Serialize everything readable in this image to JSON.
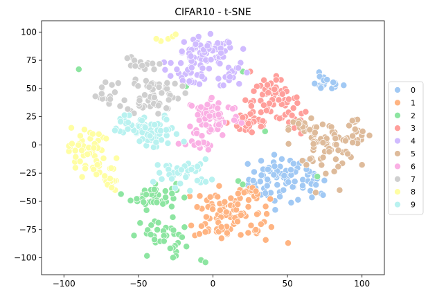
{
  "chart_data": {
    "type": "scatter",
    "title": "CIFAR10 - t-SNE",
    "xlabel": "",
    "ylabel": "",
    "xlim": [
      -115,
      115
    ],
    "ylim": [
      -115,
      110
    ],
    "xticks": [
      -100,
      -50,
      0,
      50,
      100
    ],
    "yticks": [
      -100,
      -75,
      -50,
      -25,
      0,
      25,
      50,
      75,
      100
    ],
    "grid": false,
    "legend_position": "right",
    "series": [
      {
        "name": "0",
        "color": "#a1c9f4",
        "clusters": [
          {
            "center": [
              45,
              -30
            ],
            "spread": [
              14,
              14
            ],
            "count": 70
          },
          {
            "center": [
              75,
              55
            ],
            "spread": [
              8,
              5
            ],
            "count": 18
          },
          {
            "center": [
              68,
              -38
            ],
            "spread": [
              6,
              10
            ],
            "count": 15
          }
        ],
        "points": []
      },
      {
        "name": "1",
        "color": "#ffb482",
        "clusters": [
          {
            "center": [
              5,
              -60
            ],
            "spread": [
              12,
              18
            ],
            "count": 70
          },
          {
            "center": [
              25,
              -45
            ],
            "spread": [
              8,
              10
            ],
            "count": 20
          },
          {
            "center": [
              30,
              -75
            ],
            "spread": [
              10,
              8
            ],
            "count": 15
          }
        ],
        "points": []
      },
      {
        "name": "2",
        "color": "#8de5a1",
        "clusters": [
          {
            "center": [
              -40,
              -45
            ],
            "spread": [
              10,
              8
            ],
            "count": 45
          },
          {
            "center": [
              -35,
              -78
            ],
            "spread": [
              12,
              8
            ],
            "count": 25
          },
          {
            "center": [
              -25,
              -90
            ],
            "spread": [
              6,
              5
            ],
            "count": 10
          }
        ],
        "points": [
          [
            -90,
            67
          ],
          [
            -18,
            52
          ],
          [
            -8,
            -102
          ],
          [
            -5,
            -104
          ],
          [
            20,
            65
          ],
          [
            17,
            -32
          ],
          [
            20,
            -35
          ],
          [
            35,
            12
          ],
          [
            70,
            -28
          ]
        ]
      },
      {
        "name": "3",
        "color": "#ff9f9b",
        "clusters": [
          {
            "center": [
              40,
              40
            ],
            "spread": [
              12,
              12
            ],
            "count": 60
          },
          {
            "center": [
              25,
              20
            ],
            "spread": [
              10,
              8
            ],
            "count": 30
          },
          {
            "center": [
              55,
              20
            ],
            "spread": [
              6,
              8
            ],
            "count": 15
          }
        ],
        "points": [
          [
            25,
            65
          ],
          [
            -42,
            40
          ]
        ]
      },
      {
        "name": "4",
        "color": "#d0bbff",
        "clusters": [
          {
            "center": [
              -5,
              80
            ],
            "spread": [
              14,
              10
            ],
            "count": 70
          },
          {
            "center": [
              -15,
              62
            ],
            "spread": [
              8,
              6
            ],
            "count": 25
          },
          {
            "center": [
              15,
              62
            ],
            "spread": [
              8,
              6
            ],
            "count": 15
          }
        ],
        "points": []
      },
      {
        "name": "5",
        "color": "#debb9b",
        "clusters": [
          {
            "center": [
              75,
              0
            ],
            "spread": [
              14,
              14
            ],
            "count": 70
          },
          {
            "center": [
              95,
              10
            ],
            "spread": [
              5,
              10
            ],
            "count": 15
          },
          {
            "center": [
              60,
              15
            ],
            "spread": [
              6,
              6
            ],
            "count": 12
          }
        ],
        "points": [
          [
            85,
            -40
          ]
        ]
      },
      {
        "name": "6",
        "color": "#fab0e4",
        "clusters": [
          {
            "center": [
              0,
              25
            ],
            "spread": [
              12,
              12
            ],
            "count": 75
          },
          {
            "center": [
              -10,
              0
            ],
            "spread": [
              6,
              6
            ],
            "count": 15
          }
        ],
        "points": []
      },
      {
        "name": "7",
        "color": "#cfcfcf",
        "clusters": [
          {
            "center": [
              -40,
              45
            ],
            "spread": [
              12,
              12
            ],
            "count": 60
          },
          {
            "center": [
              -75,
              45
            ],
            "spread": [
              6,
              6
            ],
            "count": 15
          },
          {
            "center": [
              -50,
              70
            ],
            "spread": [
              8,
              6
            ],
            "count": 15
          }
        ],
        "points": []
      },
      {
        "name": "8",
        "color": "#fffea3",
        "clusters": [
          {
            "center": [
              -85,
              -5
            ],
            "spread": [
              8,
              14
            ],
            "count": 50
          },
          {
            "center": [
              -70,
              -30
            ],
            "spread": [
              5,
              12
            ],
            "count": 20
          }
        ],
        "points": [
          [
            -35,
            92
          ],
          [
            -30,
            94
          ],
          [
            -27,
            96
          ],
          [
            -25,
            98
          ],
          [
            -38,
            94
          ]
        ]
      },
      {
        "name": "9",
        "color": "#b9f2f0",
        "clusters": [
          {
            "center": [
              -40,
              10
            ],
            "spread": [
              12,
              10
            ],
            "count": 60
          },
          {
            "center": [
              -20,
              -25
            ],
            "spread": [
              12,
              8
            ],
            "count": 35
          },
          {
            "center": [
              -60,
              20
            ],
            "spread": [
              5,
              5
            ],
            "count": 12
          }
        ],
        "points": []
      }
    ]
  }
}
